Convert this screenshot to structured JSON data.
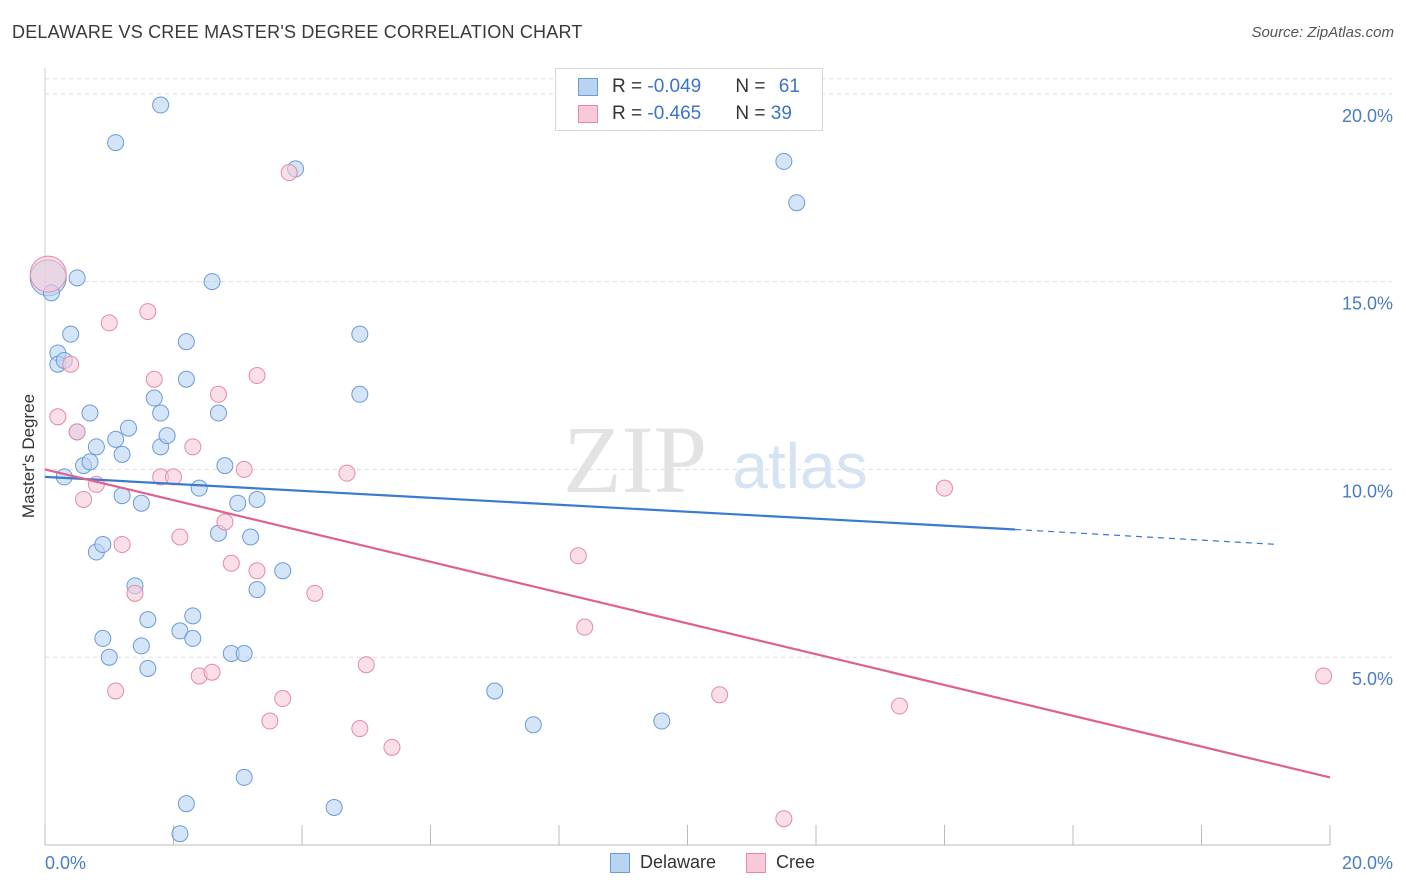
{
  "title": "DELAWARE VS CREE MASTER'S DEGREE CORRELATION CHART",
  "source": "Source: ZipAtlas.com",
  "watermark": {
    "zip": "ZIP",
    "atlas": "atlas"
  },
  "legend": {
    "delaware": {
      "r_label": "R = ",
      "r_value": "-0.049",
      "n_label": "N = ",
      "n_value": "61"
    },
    "cree": {
      "r_label": "R = ",
      "r_value": "-0.465",
      "n_label": "N = ",
      "n_value": "39"
    }
  },
  "bottom_legend": {
    "delaware": "Delaware",
    "cree": "Cree"
  },
  "colors": {
    "delaware_fill": "#b9d3f3",
    "delaware_stroke": "#6b9bd8",
    "delaware_line": "#3a7bd0",
    "cree_fill": "#f9c9d7",
    "cree_stroke": "#e48aa8",
    "cree_line": "#e0608f",
    "tick": "#4a7cc4",
    "grid": "#dddddd"
  },
  "chart_data": {
    "type": "scatter",
    "title": "DELAWARE VS CREE MASTER'S DEGREE CORRELATION CHART",
    "xlabel": "",
    "ylabel": "Master's Degree",
    "xlim": [
      0,
      20
    ],
    "ylim": [
      0,
      20.5
    ],
    "x_tick_labels": [
      "0.0%",
      "20.0%"
    ],
    "y_ticks": [
      5,
      10,
      15,
      20
    ],
    "y_tick_labels": [
      "5.0%",
      "10.0%",
      "15.0%",
      "20.0%"
    ],
    "grid": true,
    "series": [
      {
        "name": "Delaware",
        "points": [
          [
            0.05,
            15.1
          ],
          [
            0.1,
            14.7
          ],
          [
            0.2,
            13.1
          ],
          [
            0.2,
            12.8
          ],
          [
            0.3,
            12.9
          ],
          [
            0.4,
            13.6
          ],
          [
            0.5,
            15.1
          ],
          [
            0.3,
            9.8
          ],
          [
            0.5,
            11.0
          ],
          [
            0.6,
            10.1
          ],
          [
            0.7,
            10.2
          ],
          [
            0.7,
            11.5
          ],
          [
            0.8,
            10.6
          ],
          [
            0.8,
            7.8
          ],
          [
            0.9,
            8.0
          ],
          [
            0.9,
            5.5
          ],
          [
            1.0,
            5.0
          ],
          [
            1.1,
            10.8
          ],
          [
            1.1,
            18.7
          ],
          [
            1.2,
            10.4
          ],
          [
            1.2,
            9.3
          ],
          [
            1.3,
            11.1
          ],
          [
            1.4,
            6.9
          ],
          [
            1.5,
            5.3
          ],
          [
            1.5,
            9.1
          ],
          [
            1.6,
            4.7
          ],
          [
            1.6,
            6.0
          ],
          [
            1.7,
            11.9
          ],
          [
            1.8,
            10.6
          ],
          [
            1.8,
            19.7
          ],
          [
            1.8,
            11.5
          ],
          [
            1.9,
            10.9
          ],
          [
            2.1,
            5.7
          ],
          [
            2.2,
            12.4
          ],
          [
            2.2,
            13.4
          ],
          [
            2.3,
            5.5
          ],
          [
            2.3,
            6.1
          ],
          [
            2.4,
            9.5
          ],
          [
            2.6,
            15.0
          ],
          [
            2.7,
            11.5
          ],
          [
            2.7,
            8.3
          ],
          [
            2.8,
            10.1
          ],
          [
            2.9,
            5.1
          ],
          [
            3.0,
            9.1
          ],
          [
            3.1,
            5.1
          ],
          [
            3.2,
            8.2
          ],
          [
            3.3,
            9.2
          ],
          [
            3.3,
            6.8
          ],
          [
            3.7,
            7.3
          ],
          [
            3.9,
            18.0
          ],
          [
            4.9,
            13.6
          ],
          [
            4.9,
            12.0
          ],
          [
            3.1,
            1.8
          ],
          [
            2.2,
            1.1
          ],
          [
            2.1,
            0.3
          ],
          [
            4.5,
            1.0
          ],
          [
            7.0,
            4.1
          ],
          [
            7.6,
            3.2
          ],
          [
            9.6,
            3.3
          ],
          [
            11.5,
            18.2
          ],
          [
            11.7,
            17.1
          ]
        ]
      },
      {
        "name": "Cree",
        "points": [
          [
            0.05,
            15.2
          ],
          [
            0.2,
            11.4
          ],
          [
            0.4,
            12.8
          ],
          [
            0.5,
            11.0
          ],
          [
            0.6,
            9.2
          ],
          [
            0.8,
            9.6
          ],
          [
            1.0,
            13.9
          ],
          [
            1.1,
            4.1
          ],
          [
            1.2,
            8.0
          ],
          [
            1.4,
            6.7
          ],
          [
            1.6,
            14.2
          ],
          [
            1.7,
            12.4
          ],
          [
            1.8,
            9.8
          ],
          [
            2.0,
            9.8
          ],
          [
            2.1,
            8.2
          ],
          [
            2.3,
            10.6
          ],
          [
            2.4,
            4.5
          ],
          [
            2.6,
            4.6
          ],
          [
            2.7,
            12.0
          ],
          [
            2.8,
            8.6
          ],
          [
            2.9,
            7.5
          ],
          [
            3.1,
            10.0
          ],
          [
            3.3,
            12.5
          ],
          [
            3.3,
            7.3
          ],
          [
            3.5,
            3.3
          ],
          [
            3.7,
            3.9
          ],
          [
            3.8,
            17.9
          ],
          [
            4.2,
            6.7
          ],
          [
            4.7,
            9.9
          ],
          [
            4.9,
            3.1
          ],
          [
            5.0,
            4.8
          ],
          [
            5.4,
            2.6
          ],
          [
            8.3,
            7.7
          ],
          [
            8.4,
            5.8
          ],
          [
            10.5,
            4.0
          ],
          [
            11.5,
            0.7
          ],
          [
            13.3,
            3.7
          ],
          [
            14.0,
            9.5
          ],
          [
            19.9,
            4.5
          ]
        ]
      }
    ],
    "trend_lines": [
      {
        "series": "Delaware",
        "from": [
          0,
          9.8
        ],
        "to": [
          15.1,
          8.4
        ],
        "dashed_to": [
          19.2,
          8.0
        ]
      },
      {
        "series": "Cree",
        "from": [
          0,
          10.0
        ],
        "to": [
          20,
          1.8
        ]
      }
    ]
  }
}
